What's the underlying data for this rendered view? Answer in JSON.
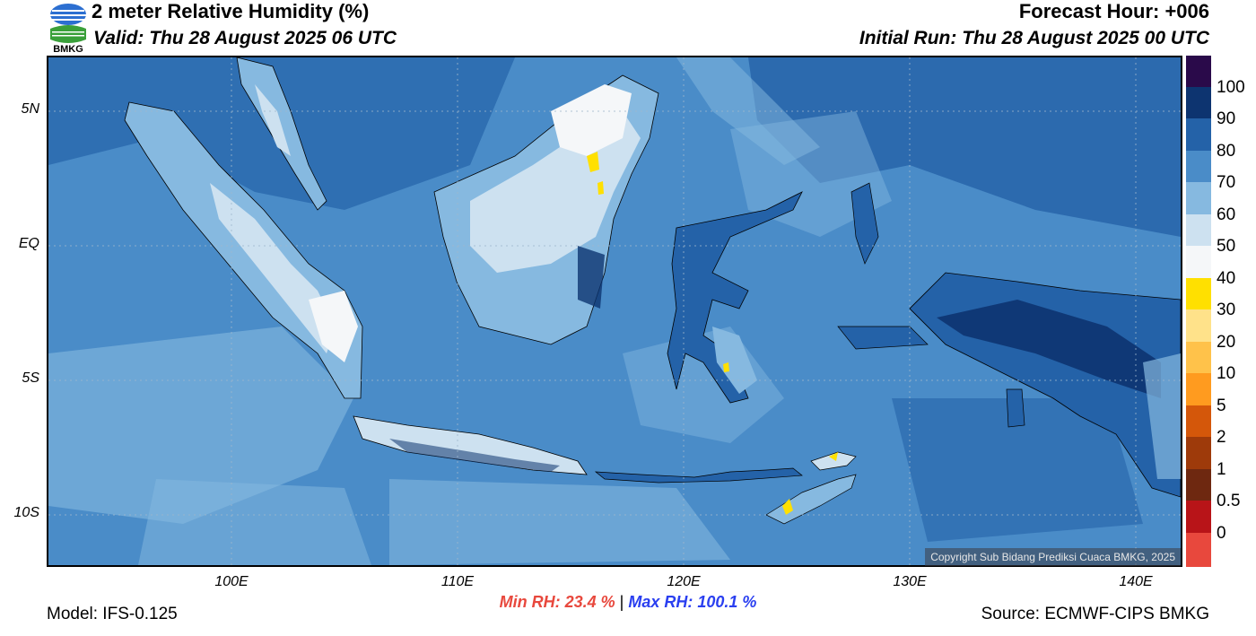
{
  "header": {
    "title": "2 meter Relative Humidity (%)",
    "valid": "Valid: Thu 28 August 2025 06 UTC",
    "forecast_hour": "Forecast Hour: +006",
    "initial_run": "Initial Run: Thu 28 August 2025 00 UTC"
  },
  "logo": {
    "text": "BMKG"
  },
  "axes": {
    "lat_labels": [
      "5N",
      "EQ",
      "5S",
      "10S"
    ],
    "lon_labels": [
      "100E",
      "110E",
      "120E",
      "130E",
      "140E"
    ]
  },
  "colorbar": {
    "labels": [
      "100",
      "90",
      "80",
      "70",
      "60",
      "50",
      "40",
      "30",
      "20",
      "10",
      "5",
      "2",
      "1",
      "0.5",
      "0"
    ],
    "colors": [
      "#2a0a4a",
      "#0d3470",
      "#2462a8",
      "#4a8cc8",
      "#86b9e0",
      "#cde1f0",
      "#f5f7f9",
      "#ffe000",
      "#ffe28a",
      "#ffc24a",
      "#ff9b1f",
      "#d4570a",
      "#9e3a0a",
      "#6e2810",
      "#b81418",
      "#e8483d"
    ]
  },
  "stats": {
    "min_rh": "Min RH:  23.4 %",
    "separator": "|",
    "max_rh": "Max RH: 100.1 %"
  },
  "footer": {
    "model": "Model: IFS-0.125",
    "source": "Source: ECMWF-CIPS BMKG",
    "copyright": "Copyright Sub Bidang Prediksi Cuaca BMKG, 2025"
  }
}
